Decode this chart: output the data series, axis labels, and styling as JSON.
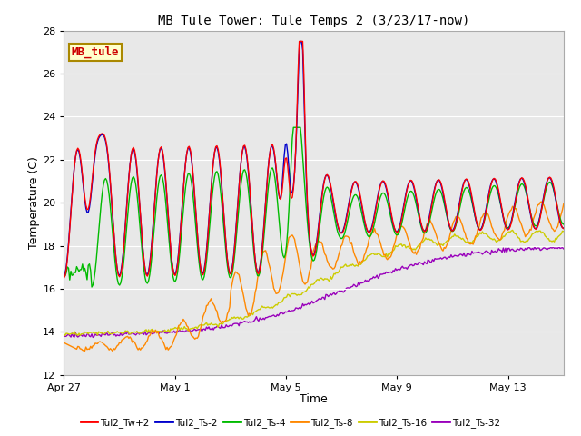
{
  "title": "MB Tule Tower: Tule Temps 2 (3/23/17-now)",
  "xlabel": "Time",
  "ylabel": "Temperature (C)",
  "ylim": [
    12,
    28
  ],
  "yticks": [
    12,
    14,
    16,
    18,
    20,
    22,
    24,
    26,
    28
  ],
  "background_color": "#e8e8e8",
  "plot_bg": "#ebebeb",
  "legend_labels": [
    "Tul2_Tw+2",
    "Tul2_Ts-2",
    "Tul2_Ts-4",
    "Tul2_Ts-8",
    "Tul2_Ts-16",
    "Tul2_Ts-32"
  ],
  "line_colors": [
    "#ff0000",
    "#0000cc",
    "#00bb00",
    "#ff8800",
    "#cccc00",
    "#9900bb"
  ],
  "waterbox_label": "MB_tule",
  "waterbox_color": "#cc0000",
  "waterbox_bg": "#ffffcc",
  "waterbox_border": "#aa8800",
  "xtick_labels": [
    "Apr 27",
    "May 1",
    "May 5",
    "May 9",
    "May 13"
  ],
  "xtick_positions": [
    0,
    4,
    8,
    12,
    16
  ],
  "total_days": 18,
  "figsize": [
    6.4,
    4.8
  ],
  "dpi": 100
}
